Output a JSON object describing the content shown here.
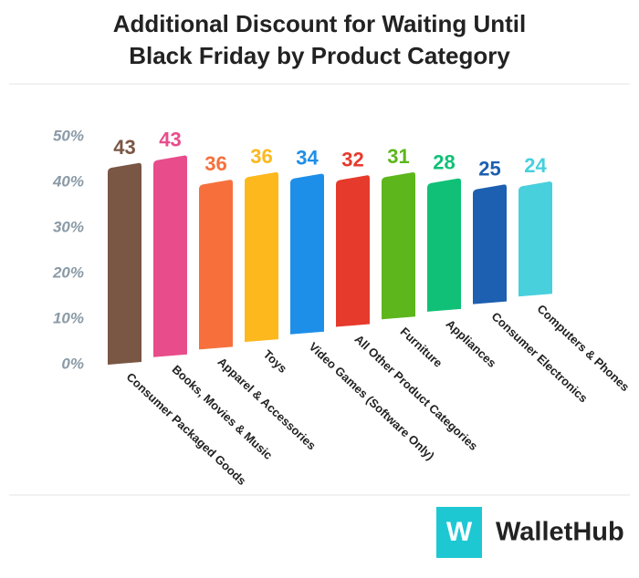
{
  "chart_data": {
    "type": "bar",
    "title": [
      "Additional Discount for Waiting Until",
      "Black Friday by Product Category"
    ],
    "categories": [
      "Consumer Packaged Goods",
      "Books, Movies & Music",
      "Apparel & Accessories",
      "Toys",
      "Video Games (Software Only)",
      "All Other Product Categories",
      "Furniture",
      "Appliances",
      "Consumer Electronics",
      "Computers & Phones"
    ],
    "values": [
      43,
      43,
      36,
      36,
      34,
      32,
      31,
      28,
      25,
      24
    ],
    "colors": [
      "#7a5644",
      "#e84c8b",
      "#f7703c",
      "#fdb81e",
      "#1e8fe9",
      "#e63a2c",
      "#5db61b",
      "#10c077",
      "#1d5fb0",
      "#48d0dc"
    ],
    "ylim": [
      0,
      50
    ],
    "yticks": [
      {
        "value": 0,
        "label": "0%"
      },
      {
        "value": 10,
        "label": "10%"
      },
      {
        "value": 20,
        "label": "20%"
      },
      {
        "value": 30,
        "label": "30%"
      },
      {
        "value": 40,
        "label": "40%"
      },
      {
        "value": 50,
        "label": "50%"
      }
    ]
  },
  "footer": {
    "logo_letter": "W",
    "logo_text": "WalletHub"
  }
}
